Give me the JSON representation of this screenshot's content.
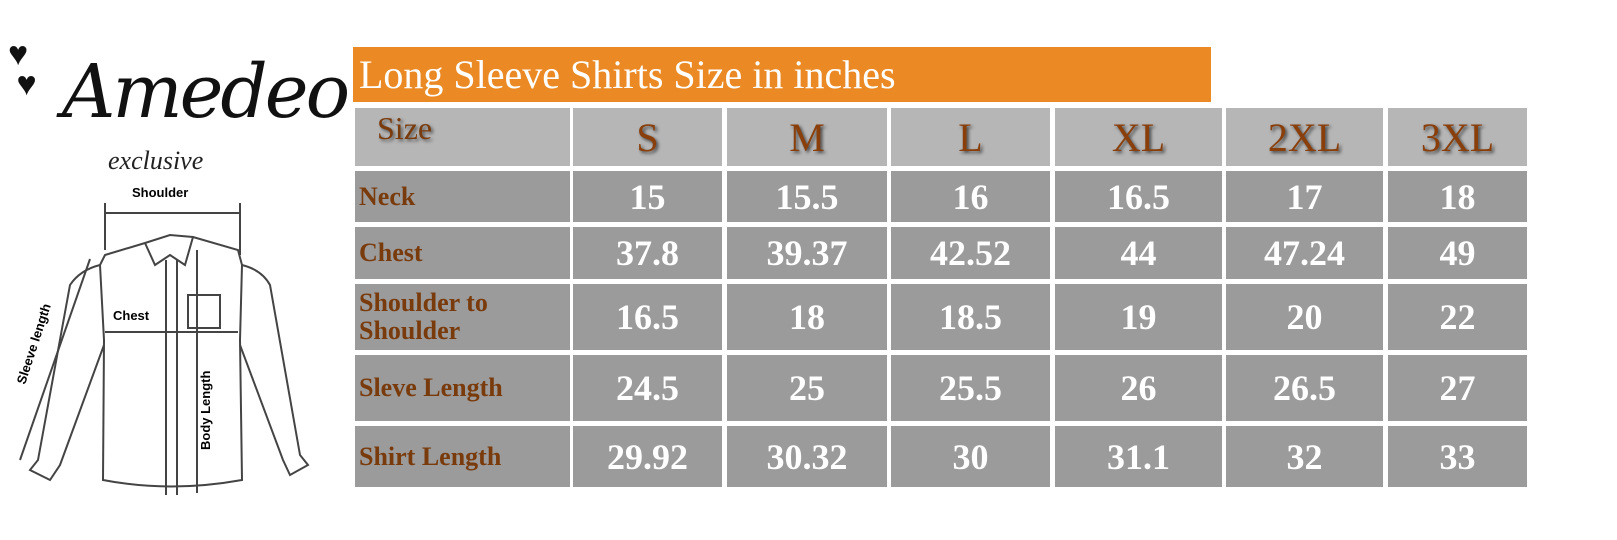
{
  "logo": {
    "brand": "Amedeo",
    "tagline": "exclusive"
  },
  "diagram": {
    "labels": {
      "shoulder": "Shoulder",
      "chest": "Chest",
      "sleeve": "Sleeve length",
      "body": "Body Length"
    }
  },
  "table": {
    "title": "Long Sleeve Shirts Size in inches",
    "header": [
      "Size",
      "S",
      "M",
      "L",
      "XL",
      "2XL",
      "3XL"
    ],
    "rows": [
      {
        "label": "Neck",
        "values": [
          "15",
          "15.5",
          "16",
          "16.5",
          "17",
          "18"
        ]
      },
      {
        "label": "Chest",
        "values": [
          "37.8",
          "39.37",
          "42.52",
          "44",
          "47.24",
          "49"
        ]
      },
      {
        "label": "Shoulder to Shoulder",
        "values": [
          "16.5",
          "18",
          "18.5",
          "19",
          "20",
          "22"
        ]
      },
      {
        "label": "Sleve Length",
        "values": [
          "24.5",
          "25",
          "25.5",
          "26",
          "26.5",
          "27"
        ]
      },
      {
        "label": "Shirt Length",
        "values": [
          "29.92",
          "30.32",
          "30",
          "31.1",
          "32",
          "33"
        ]
      }
    ]
  },
  "colors": {
    "title_bg": "#eb8a24",
    "header_bg": "#b6b6b6",
    "cell_bg": "#9b9b9b",
    "label_text": "#7a3b0c"
  }
}
